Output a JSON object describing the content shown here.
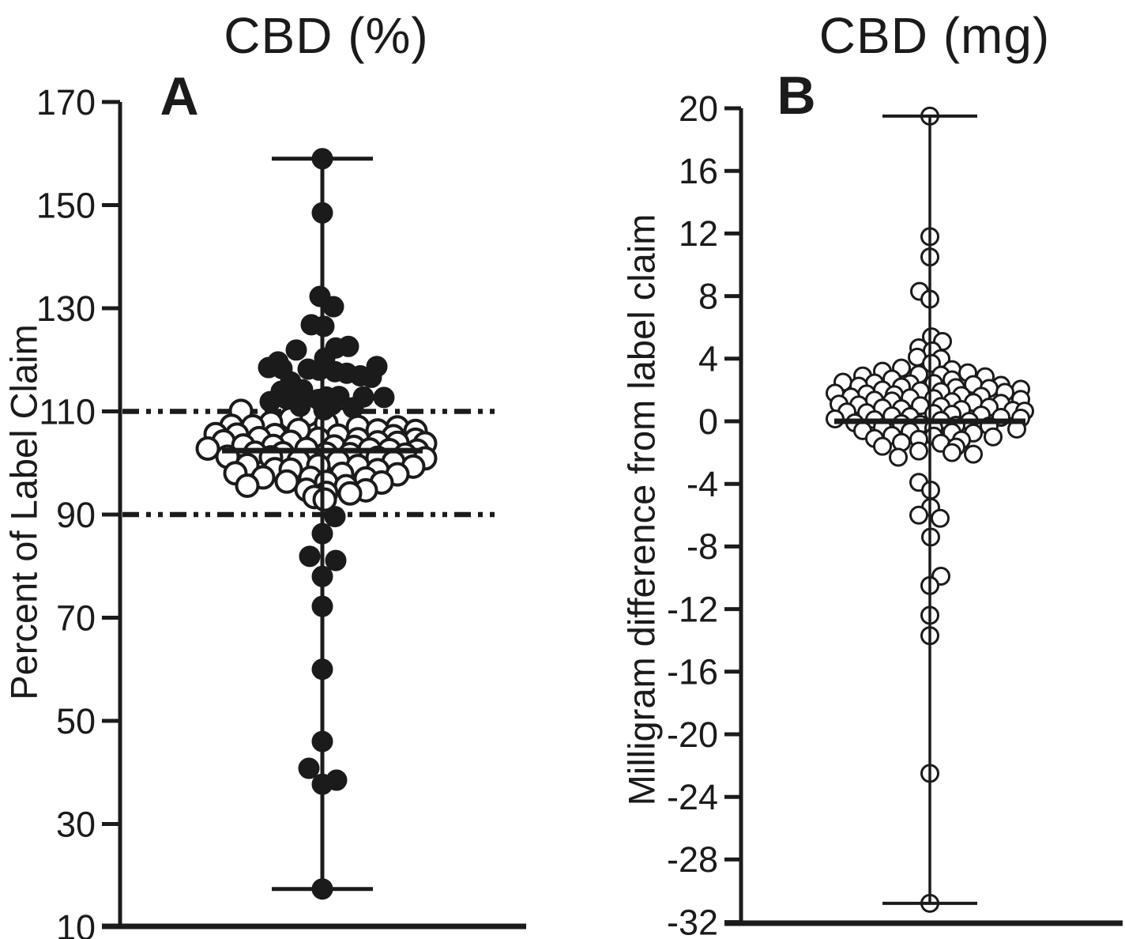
{
  "figure": {
    "background": "#ffffff",
    "ink": "#1b1b1b"
  },
  "chart_data": [
    {
      "type": "scatter",
      "panel_letter": "A",
      "title": "CBD (%)",
      "ylabel": "Percent of Label Claim",
      "xlabel": "",
      "ylim": [
        10,
        170
      ],
      "yticks": [
        170,
        150,
        130,
        110,
        90,
        70,
        50,
        30,
        10
      ],
      "grid": false,
      "legend": false,
      "reference_lines": {
        "values": [
          110,
          90
        ],
        "style": "dash-dot-dot"
      },
      "median": 102.4,
      "whisker": {
        "min": 17.4,
        "max": 159
      },
      "series": [
        {
          "name": "outside-90-110-limits",
          "marker": "filled-circle",
          "points": [
            [
              159,
              0
            ],
            [
              148.5,
              0
            ],
            [
              132.3,
              -3
            ],
            [
              130.3,
              14
            ],
            [
              126.8,
              -14
            ],
            [
              126.5,
              2
            ],
            [
              122.6,
              33
            ],
            [
              122.3,
              17
            ],
            [
              121.9,
              -33
            ],
            [
              120.3,
              3
            ],
            [
              119.6,
              -56
            ],
            [
              118.7,
              69
            ],
            [
              118.5,
              -68
            ],
            [
              118.3,
              -51
            ],
            [
              118.2,
              -18
            ],
            [
              118,
              -4
            ],
            [
              117.7,
              16
            ],
            [
              117.4,
              31
            ],
            [
              116.9,
              48
            ],
            [
              116.6,
              62
            ],
            [
              115.7,
              -40
            ],
            [
              114.2,
              -25
            ],
            [
              113.9,
              -52
            ],
            [
              112.9,
              21
            ],
            [
              112.8,
              5
            ],
            [
              112.8,
              52
            ],
            [
              112.7,
              78
            ],
            [
              112.4,
              -45
            ],
            [
              112.3,
              -5
            ],
            [
              111.9,
              -66
            ],
            [
              111.3,
              12
            ],
            [
              111,
              -28
            ],
            [
              110.7,
              39
            ],
            [
              110.3,
              2
            ],
            [
              89.6,
              16
            ],
            [
              86.3,
              0
            ],
            [
              81.9,
              -16
            ],
            [
              81.1,
              17
            ],
            [
              78,
              0
            ],
            [
              72.2,
              0
            ],
            [
              60,
              0
            ],
            [
              46,
              0
            ],
            [
              40.8,
              -17
            ],
            [
              38.5,
              18
            ],
            [
              37.7,
              0
            ],
            [
              17.4,
              0
            ]
          ]
        },
        {
          "name": "within-90-110-limits",
          "marker": "open-circle",
          "points": [
            [
              110.1,
              -103
            ],
            [
              109.3,
              -19
            ],
            [
              108.6,
              -40
            ],
            [
              108.5,
              25
            ],
            [
              107.8,
              -65
            ],
            [
              107.7,
              5
            ],
            [
              107.2,
              -115
            ],
            [
              107.1,
              -88
            ],
            [
              107,
              45
            ],
            [
              106.9,
              95
            ],
            [
              106.4,
              -30
            ],
            [
              106.3,
              70
            ],
            [
              106.2,
              118
            ],
            [
              105.6,
              -135
            ],
            [
              105.5,
              -108
            ],
            [
              105.4,
              -60
            ],
            [
              105.3,
              20
            ],
            [
              105.2,
              90
            ],
            [
              104.8,
              -80
            ],
            [
              104.7,
              -5
            ],
            [
              104.6,
              45
            ],
            [
              104.5,
              118
            ],
            [
              104.2,
              -125
            ],
            [
              104.1,
              -40
            ],
            [
              104,
              70
            ],
            [
              103.9,
              95
            ],
            [
              103.8,
              130
            ],
            [
              103.4,
              -100
            ],
            [
              103.3,
              -62
            ],
            [
              103.2,
              15
            ],
            [
              103.1,
              40
            ],
            [
              102.8,
              -145
            ],
            [
              102.7,
              -20
            ],
            [
              102.6,
              60
            ],
            [
              102.5,
              85
            ],
            [
              102.4,
              120
            ],
            [
              102,
              -85
            ],
            [
              101.9,
              -50
            ],
            [
              101.8,
              5
            ],
            [
              101.7,
              35
            ],
            [
              101.6,
              105
            ],
            [
              101.2,
              -120
            ],
            [
              101.1,
              -65
            ],
            [
              101,
              70
            ],
            [
              100.9,
              130
            ],
            [
              100.4,
              -30
            ],
            [
              100.3,
              20
            ],
            [
              100.2,
              90
            ],
            [
              99.6,
              -95
            ],
            [
              99.5,
              -5
            ],
            [
              99.4,
              45
            ],
            [
              99.3,
              115
            ],
            [
              98.8,
              -60
            ],
            [
              98.7,
              -40
            ],
            [
              98.6,
              70
            ],
            [
              98,
              -110
            ],
            [
              97.9,
              25
            ],
            [
              97.8,
              95
            ],
            [
              97.2,
              -75
            ],
            [
              97.1,
              -15
            ],
            [
              97,
              55
            ],
            [
              96.4,
              -45
            ],
            [
              96.3,
              5
            ],
            [
              96.2,
              75
            ],
            [
              95.6,
              -95
            ],
            [
              95.5,
              30
            ],
            [
              94.8,
              -20
            ],
            [
              94.7,
              55
            ],
            [
              94.2,
              5
            ],
            [
              94.1,
              35
            ],
            [
              93.4,
              -10
            ],
            [
              92.9,
              3
            ]
          ]
        }
      ]
    },
    {
      "type": "scatter",
      "panel_letter": "B",
      "title": "CBD (mg)",
      "ylabel": "Milligram difference from label claim",
      "xlabel": "",
      "ylim": [
        -32,
        20
      ],
      "yticks": [
        20,
        16,
        12,
        8,
        4,
        0,
        -4,
        -8,
        -12,
        -16,
        -20,
        -24,
        -28,
        -32
      ],
      "grid": false,
      "legend": false,
      "reference_lines": {
        "values": [],
        "style": "none"
      },
      "median": 0,
      "whisker": {
        "min": -30.8,
        "max": 19.5
      },
      "series": [
        {
          "name": "milligram-difference",
          "marker": "open-circle",
          "points": [
            [
              19.5,
              0
            ],
            [
              11.8,
              0
            ],
            [
              10.5,
              0
            ],
            [
              8.3,
              -13
            ],
            [
              7.8,
              0
            ],
            [
              5.4,
              2
            ],
            [
              5.1,
              16
            ],
            [
              4.7,
              -14
            ],
            [
              4.5,
              3
            ],
            [
              4.1,
              -16
            ],
            [
              4,
              14
            ],
            [
              3.7,
              2
            ],
            [
              3.4,
              -36
            ],
            [
              3.3,
              28
            ],
            [
              3.2,
              -60
            ],
            [
              3.1,
              48
            ],
            [
              3,
              -14
            ],
            [
              2.95,
              14
            ],
            [
              2.9,
              -85
            ],
            [
              2.85,
              70
            ],
            [
              2.7,
              -48
            ],
            [
              2.65,
              28
            ],
            [
              2.5,
              -110
            ],
            [
              2.45,
              -70
            ],
            [
              2.42,
              5
            ],
            [
              2.4,
              -25
            ],
            [
              2.35,
              55
            ],
            [
              2.3,
              90
            ],
            [
              2.25,
              -90
            ],
            [
              2.2,
              -36
            ],
            [
              2.15,
              33
            ],
            [
              2.1,
              75
            ],
            [
              2.05,
              115
            ],
            [
              2,
              -60
            ],
            [
              1.95,
              -12
            ],
            [
              1.9,
              14
            ],
            [
              1.85,
              95
            ],
            [
              1.8,
              -120
            ],
            [
              1.75,
              -80
            ],
            [
              1.7,
              -45
            ],
            [
              1.65,
              40
            ],
            [
              1.6,
              65
            ],
            [
              1.55,
              -100
            ],
            [
              1.5,
              -25
            ],
            [
              1.45,
              5
            ],
            [
              1.4,
              115
            ],
            [
              1.35,
              -70
            ],
            [
              1.3,
              -48
            ],
            [
              1.25,
              28
            ],
            [
              1.2,
              55
            ],
            [
              1.15,
              90
            ],
            [
              1.1,
              -115
            ],
            [
              1.05,
              -90
            ],
            [
              1,
              -12
            ],
            [
              0.95,
              14
            ],
            [
              0.9,
              75
            ],
            [
              0.85,
              -60
            ],
            [
              0.8,
              -36
            ],
            [
              0.75,
              40
            ],
            [
              0.7,
              105
            ],
            [
              0.65,
              120
            ],
            [
              0.6,
              -105
            ],
            [
              0.55,
              -80
            ],
            [
              0.5,
              5
            ],
            [
              0.45,
              28
            ],
            [
              0.4,
              65
            ],
            [
              0.35,
              -48
            ],
            [
              0.3,
              -25
            ],
            [
              0.25,
              90
            ],
            [
              0.2,
              115
            ],
            [
              0.15,
              -120
            ],
            [
              0.1,
              -70
            ],
            [
              0.05,
              14
            ],
            [
              0,
              50
            ],
            [
              -0.1,
              -95
            ],
            [
              -0.15,
              -36
            ],
            [
              -0.2,
              -12
            ],
            [
              -0.25,
              33
            ],
            [
              -0.3,
              75
            ],
            [
              -0.4,
              -60
            ],
            [
              -0.45,
              5
            ],
            [
              -0.5,
              110
            ],
            [
              -0.6,
              -85
            ],
            [
              -0.65,
              -25
            ],
            [
              -0.7,
              28
            ],
            [
              -0.75,
              55
            ],
            [
              -0.9,
              -48
            ],
            [
              -0.95,
              5
            ],
            [
              -1,
              80
            ],
            [
              -1.1,
              -70
            ],
            [
              -1.15,
              -14
            ],
            [
              -1.2,
              40
            ],
            [
              -1.35,
              -36
            ],
            [
              -1.4,
              14
            ],
            [
              -1.6,
              -60
            ],
            [
              -1.65,
              33
            ],
            [
              -1.9,
              -14
            ],
            [
              -2,
              28
            ],
            [
              -2.1,
              55
            ],
            [
              -2.3,
              -40
            ],
            [
              -3.9,
              -14
            ],
            [
              -4.4,
              1
            ],
            [
              -5.5,
              1
            ],
            [
              -6,
              -14
            ],
            [
              -6.2,
              13
            ],
            [
              -7.4,
              1
            ],
            [
              -9.9,
              14
            ],
            [
              -10.5,
              0
            ],
            [
              -12.4,
              0
            ],
            [
              -13.7,
              0
            ],
            [
              -22.5,
              0
            ],
            [
              -30.8,
              0
            ]
          ]
        }
      ]
    }
  ]
}
